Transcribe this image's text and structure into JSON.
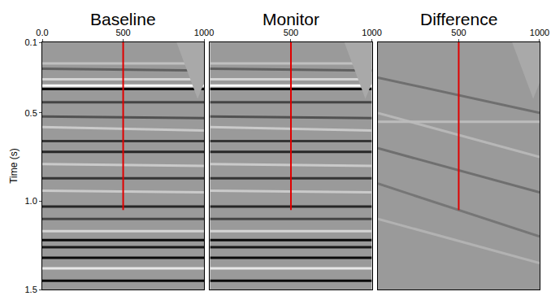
{
  "chart_data": {
    "type": "seismic_section",
    "yaxis_title": "Time (s)",
    "ylim": [
      1.5,
      0.1
    ],
    "yticks": [
      0.1,
      0.5,
      {
        "value": 1,
        "label": "1.0"
      },
      1.5
    ],
    "panels": [
      {
        "title": "Baseline",
        "xlim": [
          0,
          1000
        ],
        "xticks": [
          {
            "value": 0,
            "label": "0.0"
          },
          500,
          1000
        ],
        "reflectors": [
          {
            "t0": 0.22,
            "t1": 0.22,
            "amp": -0.4
          },
          {
            "t0": 0.25,
            "t1": 0.26,
            "amp": 0.4
          },
          {
            "t0": 0.31,
            "t1": 0.31,
            "amp": -0.6
          },
          {
            "t0": 0.345,
            "t1": 0.345,
            "amp": -1
          },
          {
            "t0": 0.365,
            "t1": 0.365,
            "amp": 1
          },
          {
            "t0": 0.44,
            "t1": 0.44,
            "amp": 0.6
          },
          {
            "t0": 0.52,
            "t1": 0.53,
            "amp": 0.5
          },
          {
            "t0": 0.58,
            "t1": 0.6,
            "amp": -0.5
          },
          {
            "t0": 0.66,
            "t1": 0.66,
            "amp": 0.7
          },
          {
            "t0": 0.72,
            "t1": 0.72,
            "amp": 0.8
          },
          {
            "t0": 0.79,
            "t1": 0.8,
            "amp": -0.5
          },
          {
            "t0": 0.87,
            "t1": 0.87,
            "amp": 0.7
          },
          {
            "t0": 0.94,
            "t1": 0.95,
            "amp": -0.5
          },
          {
            "t0": 1.03,
            "t1": 1.03,
            "amp": 0.8
          },
          {
            "t0": 1.1,
            "t1": 1.1,
            "amp": 0.6
          },
          {
            "t0": 1.17,
            "t1": 1.17,
            "amp": -0.6
          },
          {
            "t0": 1.22,
            "t1": 1.22,
            "amp": 1
          },
          {
            "t0": 1.26,
            "t1": 1.26,
            "amp": 0.9
          },
          {
            "t0": 1.32,
            "t1": 1.32,
            "amp": 1
          },
          {
            "t0": 1.38,
            "t1": 1.38,
            "amp": -0.8
          },
          {
            "t0": 1.45,
            "t1": 1.45,
            "amp": 1
          }
        ],
        "mute": {
          "x": [
            830,
            1000,
            1000,
            960
          ],
          "y": [
            0.1,
            0.1,
            0.33,
            0.42
          ]
        },
        "well": {
          "x": 500,
          "y": [
            0.1,
            1.05
          ],
          "color": "#e00000"
        }
      },
      {
        "title": "Monitor",
        "xlim": [
          0,
          1000
        ],
        "xticks": [
          500,
          1000
        ],
        "reflectors": [
          {
            "t0": 0.22,
            "t1": 0.22,
            "amp": -0.4
          },
          {
            "t0": 0.25,
            "t1": 0.26,
            "amp": 0.4
          },
          {
            "t0": 0.31,
            "t1": 0.31,
            "amp": -0.6
          },
          {
            "t0": 0.345,
            "t1": 0.345,
            "amp": -1
          },
          {
            "t0": 0.365,
            "t1": 0.365,
            "amp": 1
          },
          {
            "t0": 0.44,
            "t1": 0.44,
            "amp": 0.6
          },
          {
            "t0": 0.52,
            "t1": 0.53,
            "amp": 0.5
          },
          {
            "t0": 0.58,
            "t1": 0.6,
            "amp": -0.5
          },
          {
            "t0": 0.66,
            "t1": 0.66,
            "amp": 0.7
          },
          {
            "t0": 0.72,
            "t1": 0.72,
            "amp": 0.8
          },
          {
            "t0": 0.79,
            "t1": 0.8,
            "amp": -0.5
          },
          {
            "t0": 0.87,
            "t1": 0.87,
            "amp": 0.7
          },
          {
            "t0": 0.94,
            "t1": 0.95,
            "amp": -0.5
          },
          {
            "t0": 1.03,
            "t1": 1.03,
            "amp": 0.8
          },
          {
            "t0": 1.1,
            "t1": 1.1,
            "amp": 0.6
          },
          {
            "t0": 1.17,
            "t1": 1.17,
            "amp": -0.6
          },
          {
            "t0": 1.22,
            "t1": 1.22,
            "amp": 1
          },
          {
            "t0": 1.26,
            "t1": 1.26,
            "amp": 0.9
          },
          {
            "t0": 1.32,
            "t1": 1.32,
            "amp": 1
          },
          {
            "t0": 1.38,
            "t1": 1.38,
            "amp": -0.8
          },
          {
            "t0": 1.45,
            "t1": 1.45,
            "amp": 1
          }
        ],
        "mute": {
          "x": [
            830,
            1000,
            1000,
            960
          ],
          "y": [
            0.1,
            0.1,
            0.33,
            0.42
          ]
        },
        "well": {
          "x": 500,
          "y": [
            0.1,
            1.05
          ],
          "color": "#e00000"
        }
      },
      {
        "title": "Difference",
        "xlim": [
          0,
          1000
        ],
        "xticks": [
          500,
          1000
        ],
        "reflectors": [
          {
            "t0": 0.3,
            "t1": 0.5,
            "amp": 0.3
          },
          {
            "t0": 0.5,
            "t1": 0.75,
            "amp": -0.3
          },
          {
            "t0": 0.55,
            "t1": 0.55,
            "amp": -0.35
          },
          {
            "t0": 0.7,
            "t1": 0.95,
            "amp": 0.3
          },
          {
            "t0": 0.9,
            "t1": 1.2,
            "amp": 0.25
          },
          {
            "t0": 1.1,
            "t1": 1.35,
            "amp": -0.25
          }
        ],
        "mute": {
          "x": [
            830,
            1000,
            1000,
            960
          ],
          "y": [
            0.1,
            0.1,
            0.33,
            0.42
          ]
        },
        "well": {
          "x": 500,
          "y": [
            0.1,
            1.05
          ],
          "color": "#e00000"
        }
      }
    ]
  }
}
